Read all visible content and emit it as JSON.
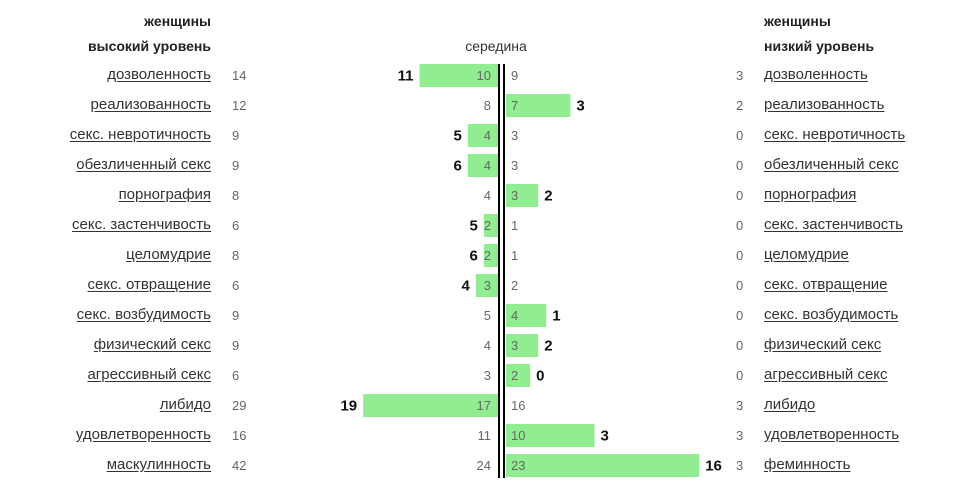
{
  "header": {
    "left_line1": "женщины",
    "left_line2": "высокий уровень",
    "center": "середина",
    "right_line1": "женщины",
    "right_line2": "низкий уровень"
  },
  "colors": {
    "bar": "#90ee90",
    "axis": "#000000"
  },
  "chart_data": {
    "type": "bar",
    "title": "",
    "rows": [
      {
        "left_label": "дозволенность",
        "right_label": "дозволенность",
        "left_count": 14,
        "right_count": 3,
        "mid_left": 10,
        "mid_right": 9,
        "diff": 11,
        "side": "left"
      },
      {
        "left_label": "реализованность",
        "right_label": "реализованность",
        "left_count": 12,
        "right_count": 2,
        "mid_left": 8,
        "mid_right": 7,
        "diff": 3,
        "side": "right"
      },
      {
        "left_label": "секс. невротичность",
        "right_label": "секс. невротичность",
        "left_count": 9,
        "right_count": 0,
        "mid_left": 4,
        "mid_right": 3,
        "diff": 5,
        "side": "left"
      },
      {
        "left_label": "обезличенный секс",
        "right_label": "обезличенный секс",
        "left_count": 9,
        "right_count": 0,
        "mid_left": 4,
        "mid_right": 3,
        "diff": 6,
        "side": "left"
      },
      {
        "left_label": "порнография",
        "right_label": "порнография",
        "left_count": 8,
        "right_count": 0,
        "mid_left": 4,
        "mid_right": 3,
        "diff": 2,
        "side": "right"
      },
      {
        "left_label": "секс. застенчивость",
        "right_label": "секс. застенчивость",
        "left_count": 6,
        "right_count": 0,
        "mid_left": 2,
        "mid_right": 1,
        "diff": 5,
        "side": "left"
      },
      {
        "left_label": "целомудрие",
        "right_label": "целомудрие",
        "left_count": 8,
        "right_count": 0,
        "mid_left": 2,
        "mid_right": 1,
        "diff": 6,
        "side": "left"
      },
      {
        "left_label": "секс. отвращение",
        "right_label": "секс. отвращение",
        "left_count": 6,
        "right_count": 0,
        "mid_left": 3,
        "mid_right": 2,
        "diff": 4,
        "side": "left"
      },
      {
        "left_label": "секс. возбудимость",
        "right_label": "секс. возбудимость",
        "left_count": 9,
        "right_count": 0,
        "mid_left": 5,
        "mid_right": 4,
        "diff": 1,
        "side": "right"
      },
      {
        "left_label": "физический секс",
        "right_label": "физический секс",
        "left_count": 9,
        "right_count": 0,
        "mid_left": 4,
        "mid_right": 3,
        "diff": 2,
        "side": "right"
      },
      {
        "left_label": "агрессивный секс",
        "right_label": "агрессивный секс",
        "left_count": 6,
        "right_count": 0,
        "mid_left": 3,
        "mid_right": 2,
        "diff": 0,
        "side": "right"
      },
      {
        "left_label": "либидо",
        "right_label": "либидо",
        "left_count": 29,
        "right_count": 3,
        "mid_left": 17,
        "mid_right": 16,
        "diff": 19,
        "side": "left"
      },
      {
        "left_label": "удовлетворенность",
        "right_label": "удовлетворенность",
        "left_count": 16,
        "right_count": 3,
        "mid_left": 11,
        "mid_right": 10,
        "diff": 3,
        "side": "right"
      },
      {
        "left_label": "маскулинность",
        "right_label": "феминность",
        "left_count": 42,
        "right_count": 3,
        "mid_left": 24,
        "mid_right": 23,
        "diff": 16,
        "side": "right"
      }
    ]
  }
}
